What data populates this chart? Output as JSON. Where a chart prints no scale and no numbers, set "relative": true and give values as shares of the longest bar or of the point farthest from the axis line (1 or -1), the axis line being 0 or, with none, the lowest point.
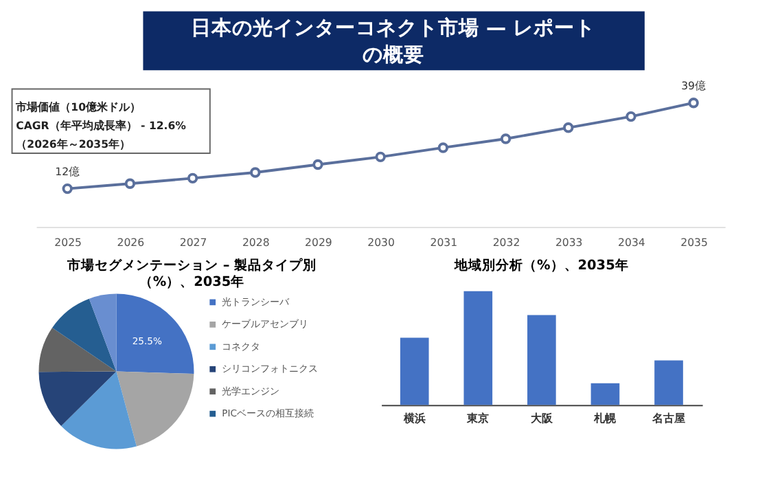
{
  "chart_data": [
    {
      "type": "line",
      "title": "日本の光インターコネクト市場 — レポートの概要",
      "categories": [
        "2025",
        "2026",
        "2027",
        "2028",
        "2029",
        "2030",
        "2031",
        "2032",
        "2033",
        "2034",
        "2035"
      ],
      "values": [
        12,
        13.6,
        15.3,
        17.1,
        19.6,
        22.0,
        24.9,
        27.7,
        31.2,
        34.7,
        39
      ],
      "value_labels": [
        "12億",
        null,
        null,
        null,
        null,
        null,
        null,
        null,
        null,
        null,
        "39億"
      ],
      "color": "#5a6f9c",
      "marker": "circle",
      "line_style": "solid",
      "annotations": [
        "市場価値（10億米ドル）",
        "CAGR（年平均成長率） - 12.6%",
        "（2026年～2035年）"
      ]
    },
    {
      "type": "pie",
      "title": "市場セグメンテーション – 製品タイプ別（%）、2035年",
      "categories": [
        "光トランシーバ",
        "ケーブルアセンブリ",
        "コネクタ",
        "シリコンフォトニクス",
        "光学エンジン",
        "PICベースの相互接続",
        null
      ],
      "values": [
        25.5,
        20.3,
        16.8,
        12.3,
        9.6,
        9.8,
        5.7
      ],
      "colors": [
        "#4472c4",
        "#a5a5a5",
        "#5b9bd5",
        "#264478",
        "#636363",
        "#255e91",
        "#698ed0"
      ],
      "value_labels": [
        "25.5%",
        null,
        null,
        null,
        null,
        null,
        null
      ],
      "legend": "right"
    },
    {
      "type": "bar",
      "title": "地域別分析（%）、2035年",
      "categories": [
        "横浜",
        "東京",
        "大阪",
        "札幌",
        "名古屋"
      ],
      "values": [
        0.59,
        1,
        0.79,
        0.19,
        0.39
      ],
      "color": "#4472c4",
      "relative": true
    }
  ]
}
